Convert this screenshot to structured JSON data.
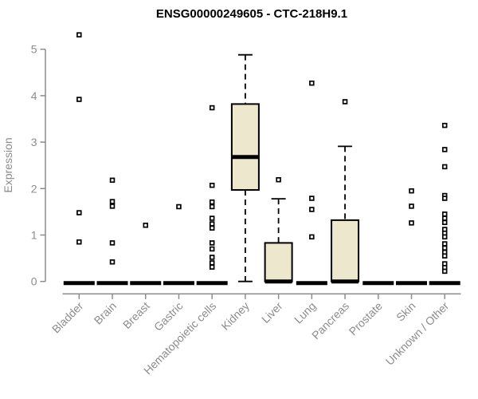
{
  "chart_data": {
    "type": "boxplot",
    "title": "ENSG00000249605 - CTC-218H9.1",
    "ylabel": "Expression",
    "xlabel": "",
    "ylim": [
      0,
      5
    ],
    "yticks": [
      0,
      1,
      2,
      3,
      4,
      5
    ],
    "grid": false,
    "legend": "none",
    "categories": [
      "Bladder",
      "Brain",
      "Breast",
      "Gastric",
      "Hematopoietic cells",
      "Kidney",
      "Liver",
      "Lung",
      "Pancreas",
      "Prostate",
      "Skin",
      "Unknown / Other"
    ],
    "series": [
      {
        "category": "Bladder",
        "min": 0,
        "q1": 0,
        "median": 0,
        "q3": 0,
        "max": 0,
        "outliers": [
          5.31,
          3.92,
          1.48,
          0.85
        ]
      },
      {
        "category": "Brain",
        "min": 0,
        "q1": 0,
        "median": 0,
        "q3": 0,
        "max": 0,
        "outliers": [
          2.18,
          1.72,
          1.62,
          0.83,
          0.42
        ]
      },
      {
        "category": "Breast",
        "min": 0,
        "q1": 0,
        "median": 0,
        "q3": 0,
        "max": 0,
        "outliers": [
          1.21
        ]
      },
      {
        "category": "Gastric",
        "min": 0,
        "q1": 0,
        "median": 0,
        "q3": 0,
        "max": 0,
        "outliers": [
          1.61
        ]
      },
      {
        "category": "Hematopoietic cells",
        "min": 0,
        "q1": 0,
        "median": 0,
        "q3": 0,
        "max": 0,
        "outliers": [
          3.74,
          2.07,
          1.71,
          1.61,
          1.36,
          1.24,
          1.15,
          0.83,
          0.7,
          0.52,
          0.4,
          0.31
        ]
      },
      {
        "category": "Kidney",
        "min": 0,
        "q1": 1.97,
        "median": 2.68,
        "q3": 3.82,
        "max": 4.88,
        "outliers": []
      },
      {
        "category": "Liver",
        "min": 0,
        "q1": 0,
        "median": 0,
        "q3": 0.83,
        "max": 1.78,
        "outliers": [
          2.19
        ]
      },
      {
        "category": "Lung",
        "min": 0,
        "q1": 0,
        "median": 0,
        "q3": 0,
        "max": 0,
        "outliers": [
          4.27,
          1.79,
          1.55,
          0.96
        ]
      },
      {
        "category": "Pancreas",
        "min": 0,
        "q1": 0,
        "median": 0,
        "q3": 1.32,
        "max": 2.91,
        "outliers": [
          3.87
        ]
      },
      {
        "category": "Prostate",
        "min": 0,
        "q1": 0,
        "median": 0,
        "q3": 0,
        "max": 0,
        "outliers": []
      },
      {
        "category": "Skin",
        "min": 0,
        "q1": 0,
        "median": 0,
        "q3": 0,
        "max": 0,
        "outliers": [
          1.95,
          1.62,
          1.26
        ]
      },
      {
        "category": "Unknown / Other",
        "min": 0,
        "q1": 0,
        "median": 0,
        "q3": 0,
        "max": 0,
        "outliers": [
          3.36,
          2.84,
          2.47,
          1.85,
          1.79,
          1.45,
          1.36,
          1.27,
          1.12,
          1.04,
          0.96,
          0.81,
          0.72,
          0.63,
          0.55,
          0.38,
          0.3,
          0.22
        ]
      }
    ],
    "colors": {
      "box_fill": "#ede8cd",
      "box_stroke": "#000000",
      "median": "#000000",
      "whisker": "#000000",
      "outlier_stroke": "#000000",
      "outlier_fill": "#ffffff",
      "axis": "#8c8c8c",
      "tick_label": "#8c8c8c",
      "title": "#000000"
    }
  }
}
